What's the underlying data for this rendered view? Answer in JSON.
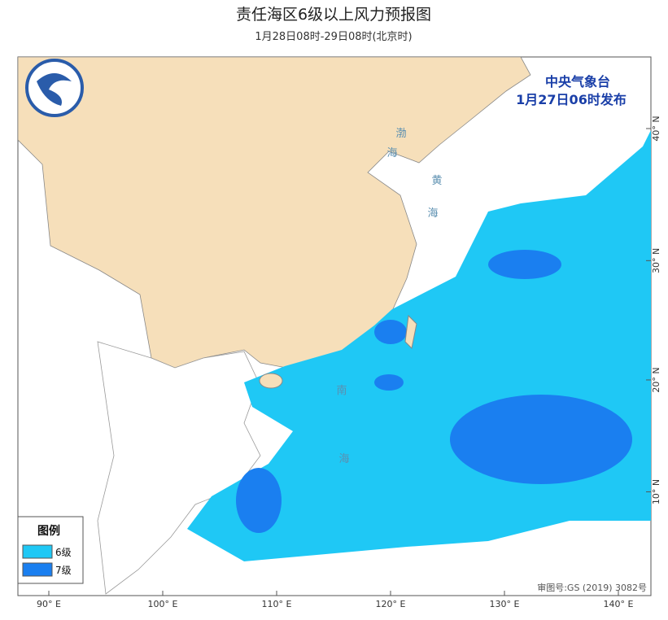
{
  "header": {
    "title": "责任海区6级以上风力预报图",
    "subtitle": "1月28日08时-29日08时(北京时)"
  },
  "issuer": {
    "agency": "中央气象台",
    "issued": "1月27日06时发布"
  },
  "legend": {
    "title": "图例",
    "items": [
      {
        "label": "6级",
        "color": "#1fc8f5"
      },
      {
        "label": "7级",
        "color": "#1a7ff0"
      }
    ]
  },
  "lon_ticks": [
    {
      "value": 90,
      "label": "90° E"
    },
    {
      "value": 100,
      "label": "100° E"
    },
    {
      "value": 110,
      "label": "110° E"
    },
    {
      "value": 120,
      "label": "120° E"
    },
    {
      "value": 130,
      "label": "130° E"
    },
    {
      "value": 140,
      "label": "140° E"
    }
  ],
  "lat_ticks": [
    {
      "value": 10,
      "label": "10° N"
    },
    {
      "value": 20,
      "label": "20° N"
    },
    {
      "value": 30,
      "label": "30° N"
    },
    {
      "value": 40,
      "label": "40° N"
    }
  ],
  "seas": [
    "渤",
    "海",
    "黄",
    "海",
    "南",
    "海"
  ],
  "approval": "审图号:GS (2019) 3082号"
}
